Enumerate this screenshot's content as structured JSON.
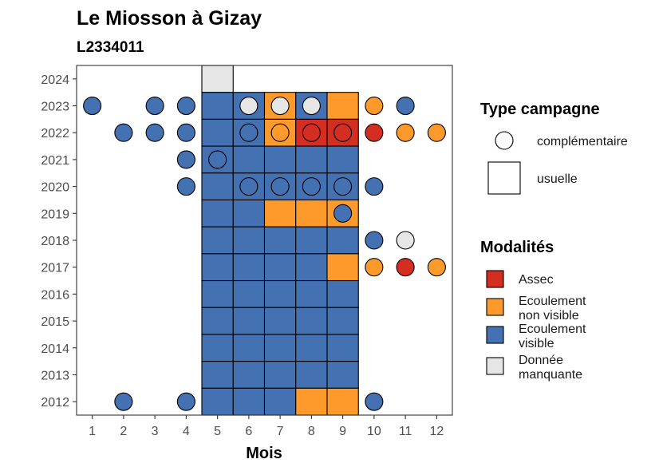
{
  "chart_data": {
    "type": "heatmap",
    "title": "Le Miosson à Gizay",
    "subtitle": "L2334011",
    "xlabel": "Mois",
    "ylabel": "",
    "x_ticks": [
      1,
      2,
      3,
      4,
      5,
      6,
      7,
      8,
      9,
      10,
      11,
      12
    ],
    "y_ticks": [
      2012,
      2013,
      2014,
      2015,
      2016,
      2017,
      2018,
      2019,
      2020,
      2021,
      2022,
      2023,
      2024
    ],
    "xlim": [
      0.5,
      12.5
    ],
    "ylim": [
      2011.5,
      2024.5
    ],
    "colors": {
      "Assec": "#D42D22",
      "Ecoulement non visible": "#FD9A2B",
      "Ecoulement visible": "#4471B2",
      "Donnée manquante": "#E6E6E6"
    },
    "legend": {
      "shape_title": "Type campagne",
      "shape_items": [
        {
          "shape": "circle",
          "label": "complémentaire"
        },
        {
          "shape": "square",
          "label": "usuelle"
        }
      ],
      "fill_title": "Modalités",
      "fill_items": [
        {
          "key": "Assec",
          "lines": [
            "Assec"
          ]
        },
        {
          "key": "Ecoulement non visible",
          "lines": [
            "Ecoulement",
            "non visible"
          ]
        },
        {
          "key": "Ecoulement visible",
          "lines": [
            "Ecoulement",
            "visible"
          ]
        },
        {
          "key": "Donnée manquante",
          "lines": [
            "Donnée",
            "manquante"
          ]
        }
      ]
    },
    "usuelle": [
      {
        "year": 2024,
        "month": 5,
        "status": "Donnée manquante"
      },
      {
        "year": 2023,
        "month": 5,
        "status": "Ecoulement visible"
      },
      {
        "year": 2023,
        "month": 6,
        "status": "Ecoulement visible"
      },
      {
        "year": 2023,
        "month": 7,
        "status": "Ecoulement non visible"
      },
      {
        "year": 2023,
        "month": 8,
        "status": "Ecoulement visible"
      },
      {
        "year": 2023,
        "month": 9,
        "status": "Ecoulement non visible"
      },
      {
        "year": 2022,
        "month": 5,
        "status": "Ecoulement visible"
      },
      {
        "year": 2022,
        "month": 6,
        "status": "Ecoulement visible"
      },
      {
        "year": 2022,
        "month": 7,
        "status": "Ecoulement non visible"
      },
      {
        "year": 2022,
        "month": 8,
        "status": "Assec"
      },
      {
        "year": 2022,
        "month": 9,
        "status": "Assec"
      },
      {
        "year": 2021,
        "month": 5,
        "status": "Ecoulement visible"
      },
      {
        "year": 2021,
        "month": 6,
        "status": "Ecoulement visible"
      },
      {
        "year": 2021,
        "month": 7,
        "status": "Ecoulement visible"
      },
      {
        "year": 2021,
        "month": 8,
        "status": "Ecoulement visible"
      },
      {
        "year": 2021,
        "month": 9,
        "status": "Ecoulement visible"
      },
      {
        "year": 2020,
        "month": 5,
        "status": "Ecoulement visible"
      },
      {
        "year": 2020,
        "month": 6,
        "status": "Ecoulement visible"
      },
      {
        "year": 2020,
        "month": 7,
        "status": "Ecoulement visible"
      },
      {
        "year": 2020,
        "month": 8,
        "status": "Ecoulement visible"
      },
      {
        "year": 2020,
        "month": 9,
        "status": "Ecoulement visible"
      },
      {
        "year": 2019,
        "month": 5,
        "status": "Ecoulement visible"
      },
      {
        "year": 2019,
        "month": 6,
        "status": "Ecoulement visible"
      },
      {
        "year": 2019,
        "month": 7,
        "status": "Ecoulement non visible"
      },
      {
        "year": 2019,
        "month": 8,
        "status": "Ecoulement non visible"
      },
      {
        "year": 2019,
        "month": 9,
        "status": "Ecoulement non visible"
      },
      {
        "year": 2018,
        "month": 5,
        "status": "Ecoulement visible"
      },
      {
        "year": 2018,
        "month": 6,
        "status": "Ecoulement visible"
      },
      {
        "year": 2018,
        "month": 7,
        "status": "Ecoulement visible"
      },
      {
        "year": 2018,
        "month": 8,
        "status": "Ecoulement visible"
      },
      {
        "year": 2018,
        "month": 9,
        "status": "Ecoulement visible"
      },
      {
        "year": 2017,
        "month": 5,
        "status": "Ecoulement visible"
      },
      {
        "year": 2017,
        "month": 6,
        "status": "Ecoulement visible"
      },
      {
        "year": 2017,
        "month": 7,
        "status": "Ecoulement visible"
      },
      {
        "year": 2017,
        "month": 8,
        "status": "Ecoulement visible"
      },
      {
        "year": 2017,
        "month": 9,
        "status": "Ecoulement non visible"
      },
      {
        "year": 2016,
        "month": 5,
        "status": "Ecoulement visible"
      },
      {
        "year": 2016,
        "month": 6,
        "status": "Ecoulement visible"
      },
      {
        "year": 2016,
        "month": 7,
        "status": "Ecoulement visible"
      },
      {
        "year": 2016,
        "month": 8,
        "status": "Ecoulement visible"
      },
      {
        "year": 2016,
        "month": 9,
        "status": "Ecoulement visible"
      },
      {
        "year": 2015,
        "month": 5,
        "status": "Ecoulement visible"
      },
      {
        "year": 2015,
        "month": 6,
        "status": "Ecoulement visible"
      },
      {
        "year": 2015,
        "month": 7,
        "status": "Ecoulement visible"
      },
      {
        "year": 2015,
        "month": 8,
        "status": "Ecoulement visible"
      },
      {
        "year": 2015,
        "month": 9,
        "status": "Ecoulement visible"
      },
      {
        "year": 2014,
        "month": 5,
        "status": "Ecoulement visible"
      },
      {
        "year": 2014,
        "month": 6,
        "status": "Ecoulement visible"
      },
      {
        "year": 2014,
        "month": 7,
        "status": "Ecoulement visible"
      },
      {
        "year": 2014,
        "month": 8,
        "status": "Ecoulement visible"
      },
      {
        "year": 2014,
        "month": 9,
        "status": "Ecoulement visible"
      },
      {
        "year": 2013,
        "month": 5,
        "status": "Ecoulement visible"
      },
      {
        "year": 2013,
        "month": 6,
        "status": "Ecoulement visible"
      },
      {
        "year": 2013,
        "month": 7,
        "status": "Ecoulement visible"
      },
      {
        "year": 2013,
        "month": 8,
        "status": "Ecoulement visible"
      },
      {
        "year": 2013,
        "month": 9,
        "status": "Ecoulement visible"
      },
      {
        "year": 2012,
        "month": 5,
        "status": "Ecoulement visible"
      },
      {
        "year": 2012,
        "month": 6,
        "status": "Ecoulement visible"
      },
      {
        "year": 2012,
        "month": 7,
        "status": "Ecoulement visible"
      },
      {
        "year": 2012,
        "month": 8,
        "status": "Ecoulement non visible"
      },
      {
        "year": 2012,
        "month": 9,
        "status": "Ecoulement non visible"
      }
    ],
    "complementaire": [
      {
        "year": 2023,
        "month": 1,
        "status": "Ecoulement visible"
      },
      {
        "year": 2023,
        "month": 3,
        "status": "Ecoulement visible"
      },
      {
        "year": 2023,
        "month": 4,
        "status": "Ecoulement visible"
      },
      {
        "year": 2023,
        "month": 6,
        "status": "Donnée manquante"
      },
      {
        "year": 2023,
        "month": 7,
        "status": "Donnée manquante"
      },
      {
        "year": 2023,
        "month": 8,
        "status": "Donnée manquante"
      },
      {
        "year": 2023,
        "month": 10,
        "status": "Ecoulement non visible"
      },
      {
        "year": 2023,
        "month": 11,
        "status": "Ecoulement visible"
      },
      {
        "year": 2022,
        "month": 2,
        "status": "Ecoulement visible"
      },
      {
        "year": 2022,
        "month": 3,
        "status": "Ecoulement visible"
      },
      {
        "year": 2022,
        "month": 4,
        "status": "Ecoulement visible"
      },
      {
        "year": 2022,
        "month": 6,
        "status": "Ecoulement visible"
      },
      {
        "year": 2022,
        "month": 7,
        "status": "Ecoulement non visible"
      },
      {
        "year": 2022,
        "month": 8,
        "status": "Assec"
      },
      {
        "year": 2022,
        "month": 9,
        "status": "Assec"
      },
      {
        "year": 2022,
        "month": 10,
        "status": "Assec"
      },
      {
        "year": 2022,
        "month": 11,
        "status": "Ecoulement non visible"
      },
      {
        "year": 2022,
        "month": 12,
        "status": "Ecoulement non visible"
      },
      {
        "year": 2021,
        "month": 4,
        "status": "Ecoulement visible"
      },
      {
        "year": 2021,
        "month": 5,
        "status": "Ecoulement visible"
      },
      {
        "year": 2020,
        "month": 4,
        "status": "Ecoulement visible"
      },
      {
        "year": 2020,
        "month": 6,
        "status": "Ecoulement visible"
      },
      {
        "year": 2020,
        "month": 7,
        "status": "Ecoulement visible"
      },
      {
        "year": 2020,
        "month": 8,
        "status": "Ecoulement visible"
      },
      {
        "year": 2020,
        "month": 9,
        "status": "Ecoulement visible"
      },
      {
        "year": 2020,
        "month": 10,
        "status": "Ecoulement visible"
      },
      {
        "year": 2019,
        "month": 9,
        "status": "Ecoulement visible"
      },
      {
        "year": 2018,
        "month": 10,
        "status": "Ecoulement visible"
      },
      {
        "year": 2018,
        "month": 11,
        "status": "Donnée manquante"
      },
      {
        "year": 2017,
        "month": 10,
        "status": "Ecoulement non visible"
      },
      {
        "year": 2017,
        "month": 11,
        "status": "Assec"
      },
      {
        "year": 2017,
        "month": 12,
        "status": "Ecoulement non visible"
      },
      {
        "year": 2012,
        "month": 2,
        "status": "Ecoulement visible"
      },
      {
        "year": 2012,
        "month": 4,
        "status": "Ecoulement visible"
      },
      {
        "year": 2012,
        "month": 10,
        "status": "Ecoulement visible"
      }
    ]
  }
}
